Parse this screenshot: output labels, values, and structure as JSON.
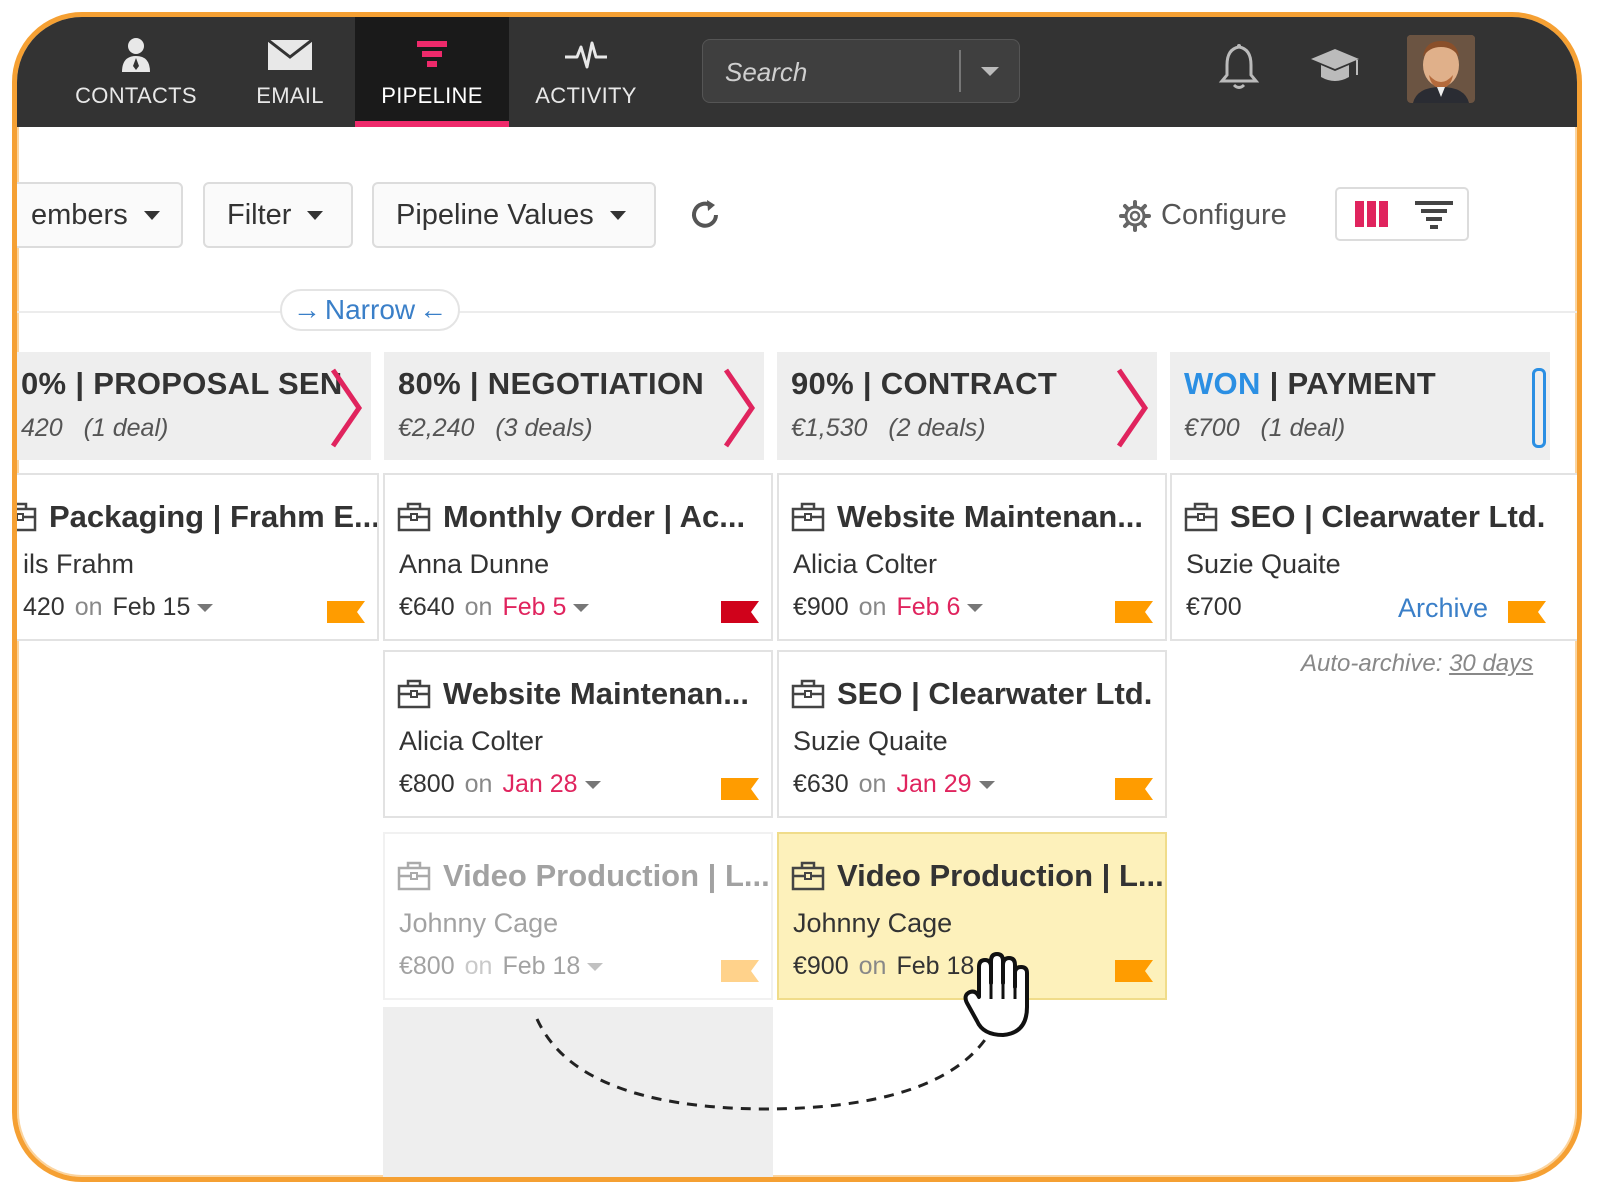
{
  "nav": {
    "tabs": [
      {
        "label": "CONTACTS",
        "icon": "person-icon"
      },
      {
        "label": "EMAIL",
        "icon": "envelope-icon"
      },
      {
        "label": "PIPELINE",
        "icon": "funnel-icon",
        "active": true
      },
      {
        "label": "ACTIVITY",
        "icon": "pulse-icon"
      }
    ],
    "search_placeholder": "Search",
    "accent_color": "#ee2a6b"
  },
  "toolbar": {
    "members_label": "embers",
    "filter_label": "Filter",
    "pipeline_values_label": "Pipeline Values",
    "configure_label": "Configure",
    "narrow_label": "Narrow"
  },
  "stages": [
    {
      "pct": "0%",
      "name": "PROPOSAL SEN",
      "total": "420",
      "deals": "(1 deal)"
    },
    {
      "pct": "80%",
      "name": "NEGOTIATION",
      "total": "€2,240",
      "deals": "(3 deals)"
    },
    {
      "pct": "90%",
      "name": "CONTRACT",
      "total": "€1,530",
      "deals": "(2 deals)"
    },
    {
      "pct": "WON",
      "name": "PAYMENT",
      "total": "€700",
      "deals": "(1 deal)"
    }
  ],
  "cards": [
    {
      "title": "Packaging | Frahm E...",
      "person": "ils Frahm",
      "amount": "420",
      "on": "on",
      "date": "Feb 15",
      "date_red": false
    },
    {
      "title": "Monthly Order | Ac...",
      "person": "Anna Dunne",
      "amount": "€640",
      "on": "on",
      "date": "Feb 5",
      "date_red": true
    },
    {
      "title": "Website Maintenan...",
      "person": "Alicia Colter",
      "amount": "€900",
      "on": "on",
      "date": "Feb 6",
      "date_red": true
    },
    {
      "title": "SEO | Clearwater Ltd.",
      "person": "Suzie Quaite",
      "amount": "€700",
      "archive": "Archive"
    },
    {
      "title": "Website Maintenan...",
      "person": "Alicia Colter",
      "amount": "€800",
      "on": "on",
      "date": "Jan 28",
      "date_red": true
    },
    {
      "title": "SEO | Clearwater Ltd.",
      "person": "Suzie Quaite",
      "amount": "€630",
      "on": "on",
      "date": "Jan 29",
      "date_red": true
    },
    {
      "title": "Video Production | L...",
      "person": "Johnny Cage",
      "amount": "€800",
      "on": "on",
      "date": "Feb 18",
      "date_red": false
    },
    {
      "title": "Video Production | L...",
      "person": "Johnny Cage",
      "amount": "€900",
      "on": "on",
      "date": "Feb 18",
      "date_red": false
    }
  ],
  "auto_archive": {
    "label": "Auto-archive:",
    "value": "30 days"
  },
  "colors": {
    "flag_orange": "#ff9c00",
    "flag_red": "#d0021b",
    "highlight": "#fdf1bb"
  }
}
